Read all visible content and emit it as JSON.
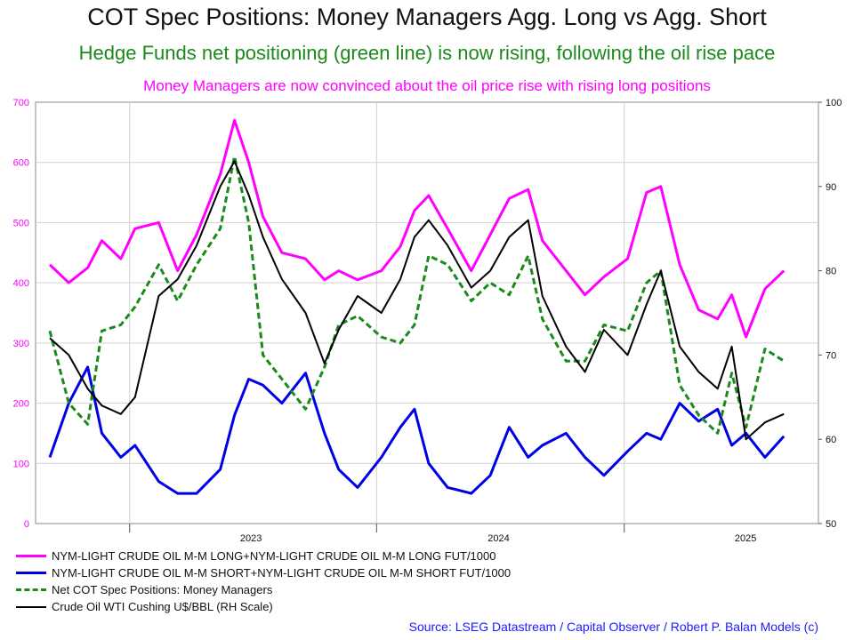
{
  "chart_data": {
    "type": "line",
    "title": "COT Spec Positions: Money Managers  Agg. Long vs Agg. Short",
    "subtitle": "Hedge Funds net positioning (green line) is now rising, following the oil rise pace",
    "subtitle2": "Money Managers are now convinced about the oil price rise with rising long positions",
    "source": "Source: LSEG Datastream / Capital Observer / Robert P. Balan Models (c)",
    "x_ticks": [
      "2023",
      "2024",
      "2025"
    ],
    "y_left": {
      "range": [
        0,
        700
      ],
      "ticks": [
        0,
        100,
        200,
        300,
        400,
        500,
        600,
        700
      ]
    },
    "y_right": {
      "range": [
        50,
        100
      ],
      "ticks": [
        50,
        60,
        70,
        80,
        90,
        100
      ]
    },
    "grid": true,
    "legend_position": "bottom",
    "series": [
      {
        "name": "NYM-LIGHT CRUDE OIL M-M LONG+NYM-LIGHT CRUDE OIL M-M LONG FUT/1000",
        "color": "#ff00ff",
        "style": "solid",
        "axis": "left",
        "points": [
          [
            "2022-09-05",
            430
          ],
          [
            "2022-10-03",
            400
          ],
          [
            "2022-10-31",
            425
          ],
          [
            "2022-11-21",
            470
          ],
          [
            "2022-12-19",
            440
          ],
          [
            "2023-01-09",
            490
          ],
          [
            "2023-02-13",
            500
          ],
          [
            "2023-03-13",
            420
          ],
          [
            "2023-04-10",
            480
          ],
          [
            "2023-05-15",
            580
          ],
          [
            "2023-06-05",
            670
          ],
          [
            "2023-06-26",
            600
          ],
          [
            "2023-07-17",
            510
          ],
          [
            "2023-08-14",
            450
          ],
          [
            "2023-09-18",
            440
          ],
          [
            "2023-10-16",
            405
          ],
          [
            "2023-11-06",
            420
          ],
          [
            "2023-12-04",
            405
          ],
          [
            "2024-01-08",
            420
          ],
          [
            "2024-02-05",
            460
          ],
          [
            "2024-02-26",
            520
          ],
          [
            "2024-03-18",
            545
          ],
          [
            "2024-04-15",
            490
          ],
          [
            "2024-05-20",
            420
          ],
          [
            "2024-06-17",
            480
          ],
          [
            "2024-07-15",
            540
          ],
          [
            "2024-08-12",
            555
          ],
          [
            "2024-09-02",
            470
          ],
          [
            "2024-10-07",
            420
          ],
          [
            "2024-11-04",
            380
          ],
          [
            "2024-12-02",
            410
          ],
          [
            "2025-01-06",
            440
          ],
          [
            "2025-02-03",
            550
          ],
          [
            "2025-02-24",
            560
          ],
          [
            "2025-03-24",
            430
          ],
          [
            "2025-04-21",
            355
          ],
          [
            "2025-05-19",
            340
          ],
          [
            "2025-06-09",
            380
          ],
          [
            "2025-06-30",
            310
          ],
          [
            "2025-07-28",
            390
          ],
          [
            "2025-08-25",
            420
          ]
        ]
      },
      {
        "name": "NYM-LIGHT CRUDE OIL M-M SHORT+NYM-LIGHT CRUDE OIL M-M SHORT FUT/1000",
        "color": "#0000e6",
        "style": "solid",
        "axis": "left",
        "points": [
          [
            "2022-09-05",
            110
          ],
          [
            "2022-10-03",
            200
          ],
          [
            "2022-10-31",
            260
          ],
          [
            "2022-11-21",
            150
          ],
          [
            "2022-12-19",
            110
          ],
          [
            "2023-01-09",
            130
          ],
          [
            "2023-02-13",
            70
          ],
          [
            "2023-03-13",
            50
          ],
          [
            "2023-04-10",
            50
          ],
          [
            "2023-05-15",
            90
          ],
          [
            "2023-06-05",
            180
          ],
          [
            "2023-06-26",
            240
          ],
          [
            "2023-07-17",
            230
          ],
          [
            "2023-08-14",
            200
          ],
          [
            "2023-09-18",
            250
          ],
          [
            "2023-10-16",
            150
          ],
          [
            "2023-11-06",
            90
          ],
          [
            "2023-12-04",
            60
          ],
          [
            "2024-01-08",
            110
          ],
          [
            "2024-02-05",
            160
          ],
          [
            "2024-02-26",
            190
          ],
          [
            "2024-03-18",
            100
          ],
          [
            "2024-04-15",
            60
          ],
          [
            "2024-05-20",
            50
          ],
          [
            "2024-06-17",
            80
          ],
          [
            "2024-07-15",
            160
          ],
          [
            "2024-08-12",
            110
          ],
          [
            "2024-09-02",
            130
          ],
          [
            "2024-10-07",
            150
          ],
          [
            "2024-11-04",
            110
          ],
          [
            "2024-12-02",
            80
          ],
          [
            "2025-01-06",
            120
          ],
          [
            "2025-02-03",
            150
          ],
          [
            "2025-02-24",
            140
          ],
          [
            "2025-03-24",
            200
          ],
          [
            "2025-04-21",
            170
          ],
          [
            "2025-05-19",
            190
          ],
          [
            "2025-06-09",
            130
          ],
          [
            "2025-06-30",
            150
          ],
          [
            "2025-07-28",
            110
          ],
          [
            "2025-08-25",
            145
          ]
        ]
      },
      {
        "name": "Net COT Spec Positions: Money Managers",
        "color": "#1a8a1a",
        "style": "dashed",
        "axis": "left",
        "points": [
          [
            "2022-09-05",
            320
          ],
          [
            "2022-10-03",
            200
          ],
          [
            "2022-10-31",
            165
          ],
          [
            "2022-11-21",
            320
          ],
          [
            "2022-12-19",
            330
          ],
          [
            "2023-01-09",
            360
          ],
          [
            "2023-02-13",
            430
          ],
          [
            "2023-03-13",
            370
          ],
          [
            "2023-04-10",
            430
          ],
          [
            "2023-05-15",
            490
          ],
          [
            "2023-06-05",
            610
          ],
          [
            "2023-06-26",
            500
          ],
          [
            "2023-07-17",
            280
          ],
          [
            "2023-08-14",
            240
          ],
          [
            "2023-09-18",
            190
          ],
          [
            "2023-10-16",
            260
          ],
          [
            "2023-11-06",
            330
          ],
          [
            "2023-12-04",
            345
          ],
          [
            "2024-01-08",
            310
          ],
          [
            "2024-02-05",
            300
          ],
          [
            "2024-02-26",
            330
          ],
          [
            "2024-03-18",
            445
          ],
          [
            "2024-04-15",
            430
          ],
          [
            "2024-05-20",
            370
          ],
          [
            "2024-06-17",
            400
          ],
          [
            "2024-07-15",
            380
          ],
          [
            "2024-08-12",
            445
          ],
          [
            "2024-09-02",
            340
          ],
          [
            "2024-10-07",
            270
          ],
          [
            "2024-11-04",
            270
          ],
          [
            "2024-12-02",
            330
          ],
          [
            "2025-01-06",
            320
          ],
          [
            "2025-02-03",
            400
          ],
          [
            "2025-02-24",
            420
          ],
          [
            "2025-03-24",
            230
          ],
          [
            "2025-04-21",
            180
          ],
          [
            "2025-05-19",
            150
          ],
          [
            "2025-06-09",
            250
          ],
          [
            "2025-06-30",
            160
          ],
          [
            "2025-07-28",
            290
          ],
          [
            "2025-08-25",
            270
          ]
        ]
      },
      {
        "name": "Crude Oil WTI Cushing U$/BBL (RH Scale)",
        "color": "#000000",
        "style": "solid",
        "axis": "right",
        "points": [
          [
            "2022-09-05",
            72
          ],
          [
            "2022-10-03",
            70
          ],
          [
            "2022-10-31",
            66
          ],
          [
            "2022-11-21",
            64
          ],
          [
            "2022-12-19",
            63
          ],
          [
            "2023-01-09",
            65
          ],
          [
            "2023-02-13",
            77
          ],
          [
            "2023-03-13",
            79
          ],
          [
            "2023-04-10",
            83
          ],
          [
            "2023-05-15",
            90
          ],
          [
            "2023-06-05",
            93
          ],
          [
            "2023-06-26",
            89
          ],
          [
            "2023-07-17",
            84
          ],
          [
            "2023-08-14",
            79
          ],
          [
            "2023-09-18",
            75
          ],
          [
            "2023-10-16",
            69
          ],
          [
            "2023-11-06",
            73
          ],
          [
            "2023-12-04",
            77
          ],
          [
            "2024-01-08",
            75
          ],
          [
            "2024-02-05",
            79
          ],
          [
            "2024-02-26",
            84
          ],
          [
            "2024-03-18",
            86
          ],
          [
            "2024-04-15",
            83
          ],
          [
            "2024-05-20",
            78
          ],
          [
            "2024-06-17",
            80
          ],
          [
            "2024-07-15",
            84
          ],
          [
            "2024-08-12",
            86
          ],
          [
            "2024-09-02",
            77
          ],
          [
            "2024-10-07",
            71
          ],
          [
            "2024-11-04",
            68
          ],
          [
            "2024-12-02",
            73
          ],
          [
            "2025-01-06",
            70
          ],
          [
            "2025-02-03",
            76
          ],
          [
            "2025-02-24",
            80
          ],
          [
            "2025-03-24",
            71
          ],
          [
            "2025-04-21",
            68
          ],
          [
            "2025-05-19",
            66
          ],
          [
            "2025-06-09",
            71
          ],
          [
            "2025-06-30",
            60
          ],
          [
            "2025-07-28",
            62
          ],
          [
            "2025-08-25",
            63
          ]
        ]
      }
    ]
  }
}
